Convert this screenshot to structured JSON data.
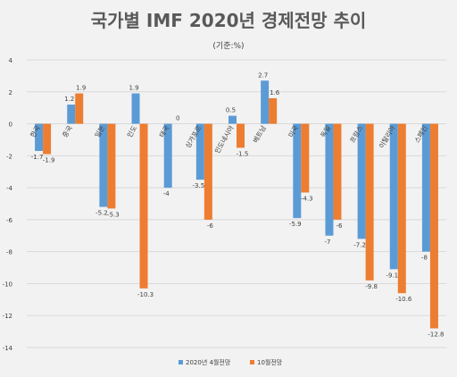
{
  "chart_data": {
    "type": "bar",
    "title": "국가별 IMF 2020년 경제전망 추이",
    "subtitle": "(기준:%)",
    "categories": [
      "한국",
      "중국",
      "일본",
      "인도",
      "태국",
      "싱가포르",
      "인도네시아",
      "베트남",
      "미국",
      "독일",
      "프랑스",
      "이탈리아",
      "스페인"
    ],
    "series": [
      {
        "name": "2020년 4월전망",
        "color": "#5b9bd5",
        "values": [
          -1.7,
          1.2,
          -5.2,
          1.9,
          -4,
          -3.5,
          0.5,
          2.7,
          -5.9,
          -7,
          -7.2,
          -9.1,
          -8
        ]
      },
      {
        "name": "10월전망",
        "color": "#ed7d31",
        "values": [
          -1.9,
          1.9,
          -5.3,
          -10.3,
          0,
          -6,
          -1.5,
          1.6,
          -4.3,
          -6,
          -9.8,
          -10.6,
          -12.8
        ]
      }
    ],
    "data_labels": [
      [
        "-1.7",
        "1.2",
        "-5.2",
        "1.9",
        "-4",
        "-3.5",
        "0.5",
        "2.7",
        "-5.9",
        "-7",
        "-7.2",
        "-9.1",
        "-8"
      ],
      [
        "-1.9",
        "1.9",
        "-5.3",
        "-10.3",
        "0",
        "-6",
        "-1.5",
        "1.6",
        "-4.3",
        "-6",
        "-9.8",
        "-10.6",
        "-12.8"
      ]
    ],
    "ylim": [
      -14,
      4
    ],
    "yticks": [
      4,
      2,
      0,
      -2,
      -4,
      -6,
      -8,
      -10,
      -12,
      -14
    ],
    "grid": true,
    "legend_position": "bottom"
  }
}
